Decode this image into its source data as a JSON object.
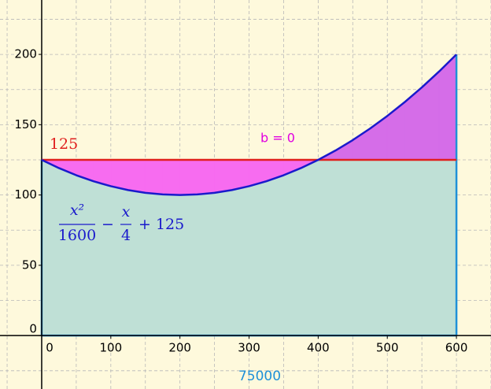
{
  "chart_data": {
    "type": "function-area",
    "x": [
      0,
      25,
      50,
      75,
      100,
      125,
      150,
      175,
      200,
      225,
      250,
      275,
      300,
      325,
      350,
      375,
      400,
      425,
      450,
      475,
      500,
      525,
      550,
      575,
      600
    ],
    "series": [
      {
        "color": "#1a1acc",
        "values": [
          125,
          119.140625,
          114.0625,
          109.765625,
          106.25,
          103.515625,
          101.5625,
          100.390625,
          100,
          100.390625,
          101.5625,
          103.515625,
          106.25,
          109.765625,
          114.0625,
          119.140625,
          125,
          131.640625,
          139.0625,
          147.265625,
          156.25,
          166.015625,
          176.5625,
          187.890625,
          200
        ]
      }
    ],
    "level": 125,
    "level_color": "#e0201e",
    "area": 75000,
    "area_color": "#1e90d8",
    "annotation": "b = 0",
    "annotation_color": "#e000e0",
    "formula": {
      "fraction1": [
        "x²",
        "1600"
      ],
      "operator": "−",
      "fraction2": [
        "x",
        "4"
      ],
      "rest": "+ 125"
    },
    "xlim": [
      -60.3,
      650
    ],
    "ylim": [
      -38,
      238.7
    ],
    "xticks": [
      0,
      100,
      200,
      300,
      400,
      500,
      600
    ],
    "yticks": [
      0,
      50,
      100,
      150,
      200
    ],
    "xgrid": [
      -50,
      0,
      50,
      100,
      150,
      200,
      250,
      300,
      350,
      400,
      450,
      500,
      550,
      600,
      650
    ],
    "ygrid": [
      -25,
      0,
      25,
      50,
      75,
      100,
      125,
      150,
      175,
      200,
      225
    ],
    "grid": true
  }
}
